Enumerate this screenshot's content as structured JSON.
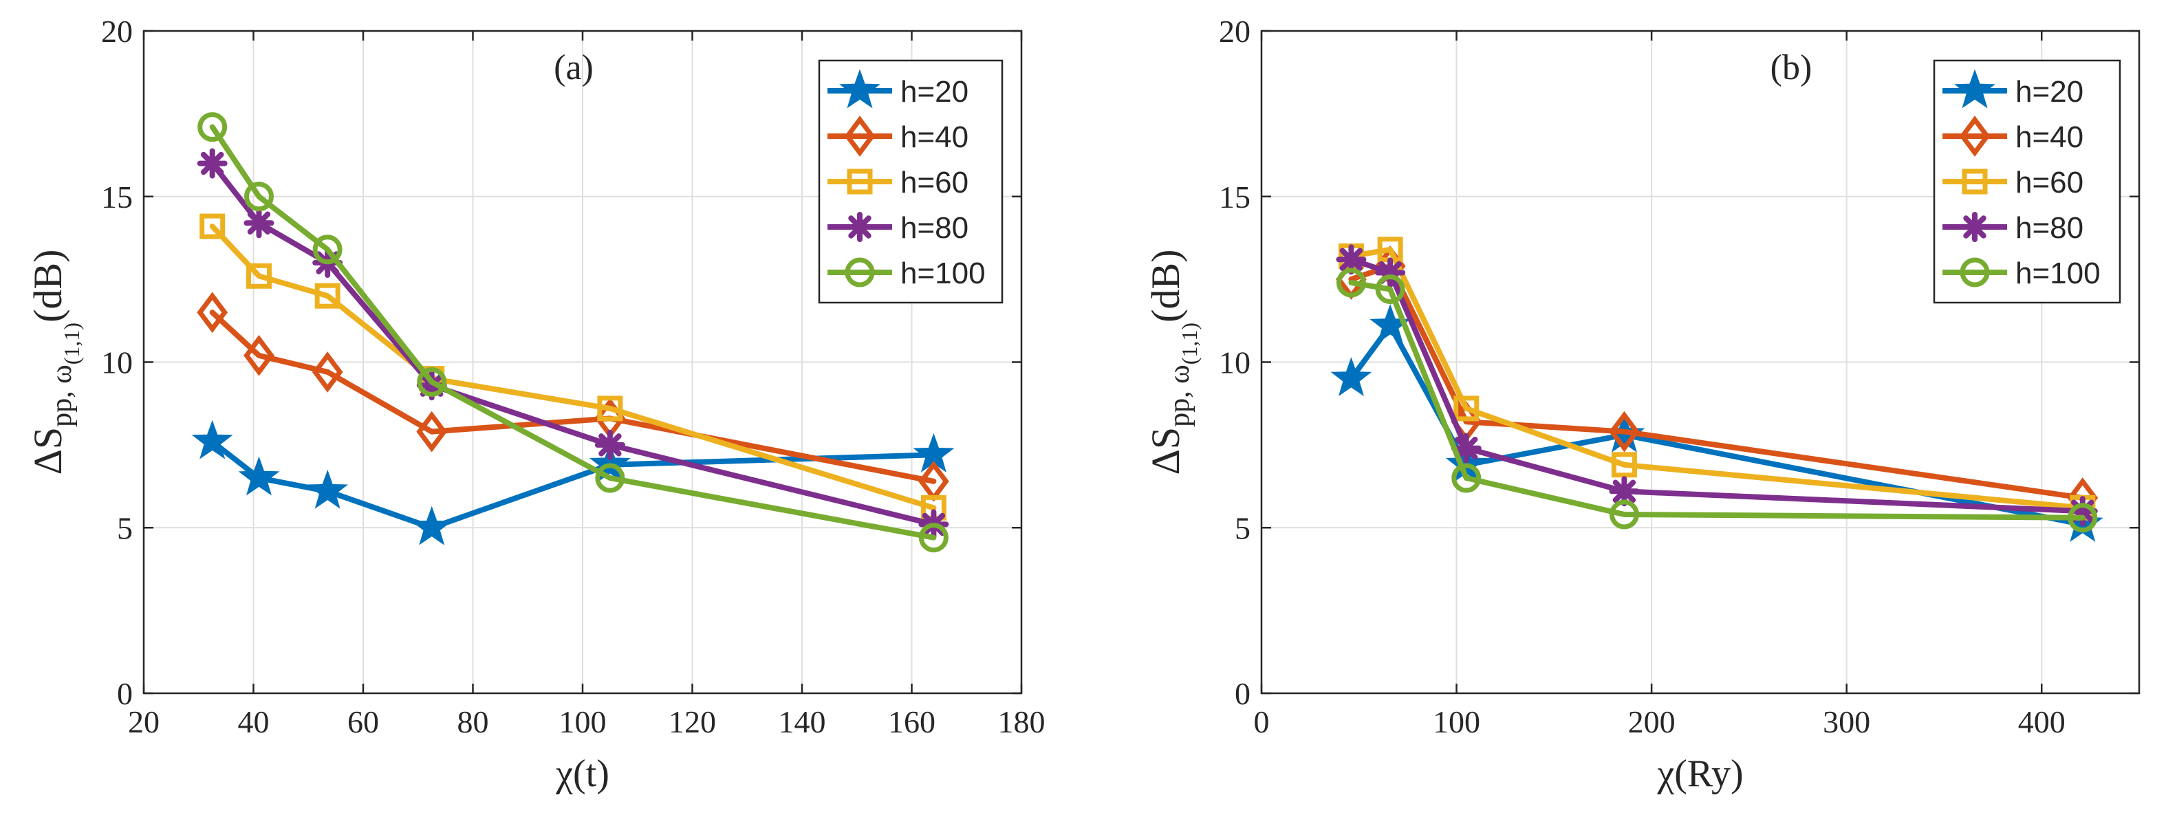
{
  "chart_data": [
    {
      "type": "line",
      "panel_label": "(a)",
      "xlabel": "χ(t)",
      "ylabel": "ΔS",
      "ylabel_sub": "pp, ω",
      "ylabel_subsub": "(1,1)",
      "ylabel_unit": "(dB)",
      "xlim": [
        20,
        180
      ],
      "ylim": [
        0,
        20
      ],
      "xticks": [
        20,
        40,
        60,
        80,
        100,
        120,
        140,
        160,
        180
      ],
      "yticks": [
        0,
        5,
        10,
        15,
        20
      ],
      "grid": true,
      "legend_position": "top-right",
      "x": [
        32.5,
        41,
        53.5,
        72.5,
        105,
        164
      ],
      "series": [
        {
          "name": "h=20",
          "marker": "star",
          "color": "#0072BD",
          "values": [
            7.6,
            6.5,
            6.1,
            5.0,
            6.9,
            7.2
          ]
        },
        {
          "name": "h=40",
          "marker": "diamond",
          "color": "#D95319",
          "values": [
            11.5,
            10.2,
            9.7,
            7.9,
            8.3,
            6.4
          ]
        },
        {
          "name": "h=60",
          "marker": "square",
          "color": "#EDB120",
          "values": [
            14.1,
            12.6,
            12.0,
            9.5,
            8.6,
            5.6
          ]
        },
        {
          "name": "h=80",
          "marker": "asterisk",
          "color": "#7E2F8E",
          "values": [
            16.0,
            14.2,
            13.0,
            9.3,
            7.5,
            5.1
          ]
        },
        {
          "name": "h=100",
          "marker": "circle",
          "color": "#77AC30",
          "values": [
            17.1,
            15.0,
            13.4,
            9.4,
            6.5,
            4.7
          ]
        }
      ]
    },
    {
      "type": "line",
      "panel_label": "(b)",
      "xlabel": "χ(Ry)",
      "ylabel": "ΔS",
      "ylabel_sub": "pp, ω",
      "ylabel_subsub": "(1,1)",
      "ylabel_unit": "(dB)",
      "xlim": [
        0,
        450
      ],
      "ylim": [
        0,
        20
      ],
      "xticks": [
        0,
        100,
        200,
        300,
        400
      ],
      "yticks": [
        0,
        5,
        10,
        15,
        20
      ],
      "grid": true,
      "legend_position": "top-right",
      "x": [
        46,
        66,
        105,
        186,
        421
      ],
      "series": [
        {
          "name": "h=20",
          "marker": "star",
          "color": "#0072BD",
          "values": [
            9.5,
            11.1,
            6.9,
            7.8,
            5.1
          ]
        },
        {
          "name": "h=40",
          "marker": "diamond",
          "color": "#D95319",
          "values": [
            12.5,
            12.9,
            8.2,
            7.9,
            5.9
          ]
        },
        {
          "name": "h=60",
          "marker": "square",
          "color": "#EDB120",
          "values": [
            13.2,
            13.4,
            8.6,
            6.9,
            5.6
          ]
        },
        {
          "name": "h=80",
          "marker": "asterisk",
          "color": "#7E2F8E",
          "values": [
            13.1,
            12.7,
            7.4,
            6.1,
            5.5
          ]
        },
        {
          "name": "h=100",
          "marker": "circle",
          "color": "#77AC30",
          "values": [
            12.4,
            12.2,
            6.5,
            5.4,
            5.3
          ]
        }
      ]
    }
  ]
}
